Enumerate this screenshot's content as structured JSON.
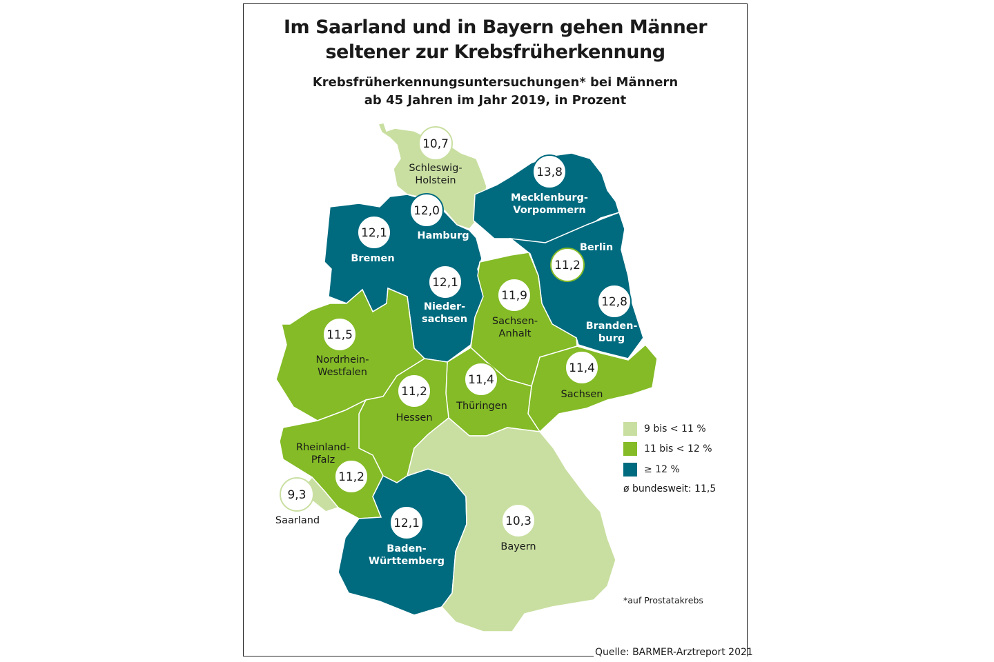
{
  "title": [
    "Im Saarland und in Bayern gehen Männer",
    "seltener zur Krebsfrüherkennung"
  ],
  "subtitle": [
    "Krebsfrüherkennungsuntersuchungen* bei Männern",
    "ab 45 Jahren im Jahr 2019, in Prozent"
  ],
  "colors": {
    "low": "#c9dfa1",
    "mid": "#84bb26",
    "high": "#006b7f",
    "dark_text": "#1a1a1a",
    "light_text": "#ffffff"
  },
  "legend": [
    {
      "label": "9 bis < 11 %",
      "category": "low"
    },
    {
      "label": "11 bis < 12 %",
      "category": "mid"
    },
    {
      "label": "≥ 12 %",
      "category": "high"
    }
  ],
  "average": "ø bundesweit: 11,5",
  "footnote": "*auf Prostatakrebs",
  "source": "Quelle: BARMER-Arztreport 2021",
  "states": [
    {
      "id": "SH",
      "name": [
        "Schleswig-",
        "Holstein"
      ],
      "value": "10,7",
      "category": "low"
    },
    {
      "id": "MV",
      "name": [
        "Mecklenburg-",
        "Vorpommern"
      ],
      "value": "13,8",
      "category": "high"
    },
    {
      "id": "HH",
      "name": [
        "Hamburg"
      ],
      "value": "12,0",
      "category": "high"
    },
    {
      "id": "HB",
      "name": [
        "Bremen"
      ],
      "value": "12,1",
      "category": "high"
    },
    {
      "id": "NI",
      "name": [
        "Nieder-",
        "sachsen"
      ],
      "value": "12,1",
      "category": "high"
    },
    {
      "id": "BE",
      "name": [
        "Berlin"
      ],
      "value": "11,2",
      "category": "mid"
    },
    {
      "id": "BB",
      "name": [
        "Branden-",
        "burg"
      ],
      "value": "12,8",
      "category": "high"
    },
    {
      "id": "ST",
      "name": [
        "Sachsen-",
        "Anhalt"
      ],
      "value": "11,9",
      "category": "mid"
    },
    {
      "id": "NW",
      "name": [
        "Nordrhein-",
        "Westfalen"
      ],
      "value": "11,5",
      "category": "mid"
    },
    {
      "id": "SN",
      "name": [
        "Sachsen"
      ],
      "value": "11,4",
      "category": "mid"
    },
    {
      "id": "TH",
      "name": [
        "Thüringen"
      ],
      "value": "11,4",
      "category": "mid"
    },
    {
      "id": "HE",
      "name": [
        "Hessen"
      ],
      "value": "11,2",
      "category": "mid"
    },
    {
      "id": "RP",
      "name": [
        "Rheinland-",
        "Pfalz"
      ],
      "value": "11,2",
      "category": "mid"
    },
    {
      "id": "SL",
      "name": [
        "Saarland"
      ],
      "value": "9,3",
      "category": "low"
    },
    {
      "id": "BW",
      "name": [
        "Baden-",
        "Württemberg"
      ],
      "value": "12,1",
      "category": "high"
    },
    {
      "id": "BY",
      "name": [
        "Bayern"
      ],
      "value": "10,3",
      "category": "low"
    }
  ]
}
